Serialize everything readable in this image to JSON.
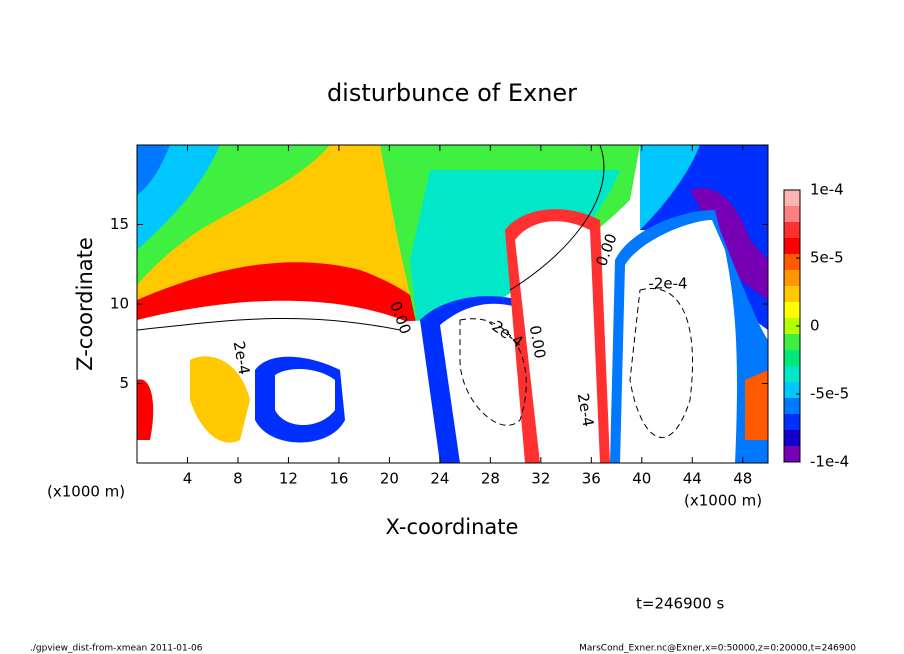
{
  "chart_data": {
    "type": "contour",
    "title": "disturbunce of Exner",
    "x_label": "X-coordinate",
    "y_label": "Z-coordinate",
    "x_unit": "(x1000 m)",
    "xlim": [
      0,
      50
    ],
    "ylim": [
      0,
      20
    ],
    "xticks": [
      4,
      8,
      12,
      16,
      20,
      24,
      28,
      32,
      36,
      40,
      44,
      48
    ],
    "yticks": [
      5,
      10,
      15
    ],
    "colorbar": {
      "clim": [
        -0.0001,
        0.0001
      ],
      "ticks": [
        {
          "value": 0.0001,
          "label": "1e-4"
        },
        {
          "value": 5e-05,
          "label": "5e-5"
        },
        0,
        {
          "value": -5e-05,
          "label": "-5e-5"
        },
        {
          "value": -0.0001,
          "label": "-1e-4"
        }
      ],
      "colors": [
        "#ffb4b4",
        "#ff8080",
        "#ff3030",
        "#ff0000",
        "#ff5a00",
        "#ff9600",
        "#ffc800",
        "#ffff00",
        "#b4ff00",
        "#40f040",
        "#00e878",
        "#00e8c8",
        "#00c8ff",
        "#0078ff",
        "#0030ff",
        "#1400c8",
        "#7800b4"
      ]
    },
    "contour_labels": [
      "0.00",
      "0.00",
      "0.00",
      "-2e-4",
      "-2e-4",
      "2e-4",
      "2e-4"
    ],
    "time_label": "t=246900 s",
    "footer_left": "./gpview_dist-from-xmean  2011-01-06",
    "footer_right": "MarsCond_Exner.nc@Exner,x=0:50000,z=0:20000,t=246900"
  }
}
